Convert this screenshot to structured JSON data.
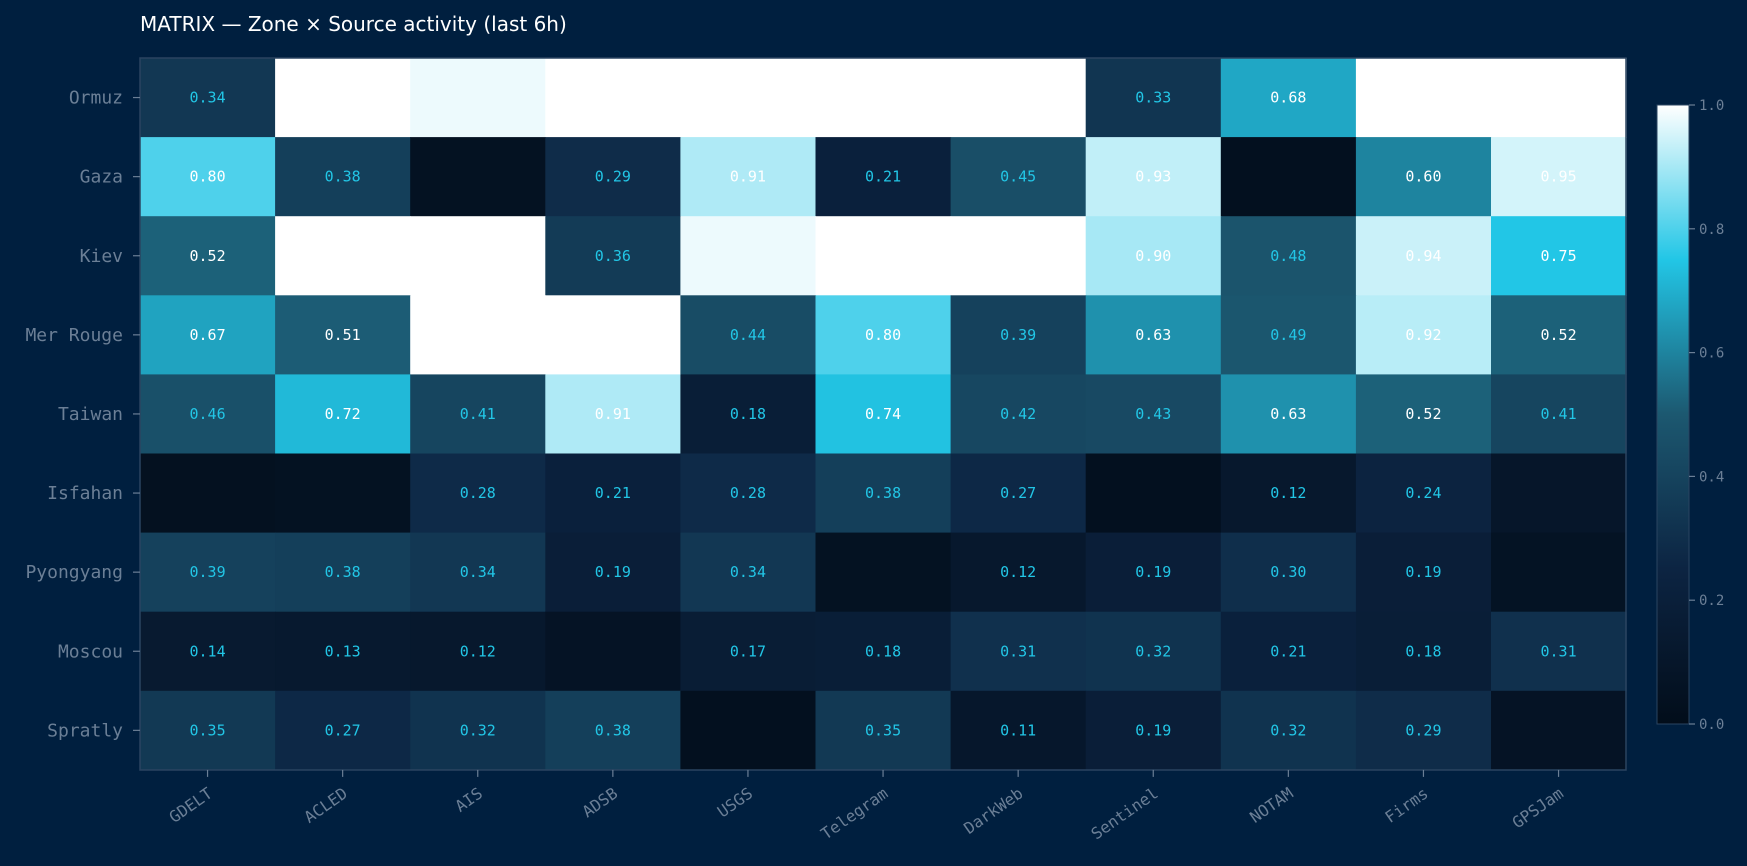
{
  "chart_data": {
    "type": "heatmap",
    "title": "MATRIX — Zone × Source activity  (last 6h)",
    "rows": [
      "Ormuz",
      "Gaza",
      "Kiev",
      "Mer Rouge",
      "Taiwan",
      "Isfahan",
      "Pyongyang",
      "Moscou",
      "Spratly"
    ],
    "columns": [
      "GDELT",
      "ACLED",
      "AIS",
      "ADSB",
      "USGS",
      "Telegram",
      "DarkWeb",
      "Sentinel",
      "NOTAM",
      "Firms",
      "GPSJam"
    ],
    "values": [
      [
        0.34,
        1.0,
        0.98,
        1.0,
        1.0,
        1.0,
        1.0,
        0.33,
        0.68,
        1.0,
        1.0
      ],
      [
        0.8,
        0.38,
        0.05,
        0.29,
        0.91,
        0.21,
        0.45,
        0.93,
        0.03,
        0.6,
        0.95
      ],
      [
        0.52,
        1.0,
        1.0,
        0.36,
        0.98,
        1.0,
        1.0,
        0.9,
        0.48,
        0.94,
        0.75
      ],
      [
        0.67,
        0.51,
        1.0,
        1.0,
        0.44,
        0.8,
        0.39,
        0.63,
        0.49,
        0.92,
        0.52
      ],
      [
        0.46,
        0.72,
        0.41,
        0.91,
        0.18,
        0.74,
        0.42,
        0.43,
        0.63,
        0.52,
        0.41
      ],
      [
        0.04,
        0.05,
        0.28,
        0.21,
        0.28,
        0.38,
        0.27,
        0.03,
        0.12,
        0.24,
        0.1
      ],
      [
        0.39,
        0.38,
        0.34,
        0.19,
        0.34,
        0.05,
        0.12,
        0.19,
        0.3,
        0.19,
        0.06
      ],
      [
        0.14,
        0.13,
        0.12,
        0.07,
        0.17,
        0.18,
        0.31,
        0.32,
        0.21,
        0.18,
        0.31
      ],
      [
        0.35,
        0.27,
        0.32,
        0.38,
        0.03,
        0.35,
        0.11,
        0.19,
        0.32,
        0.29,
        0.07
      ]
    ],
    "labels": [
      [
        "0.34",
        "",
        "",
        "",
        "",
        "",
        "",
        "0.33",
        "0.68",
        "",
        ""
      ],
      [
        "0.80",
        "0.38",
        "",
        "0.29",
        "0.91",
        "0.21",
        "0.45",
        "0.93",
        "",
        "0.60",
        "0.95"
      ],
      [
        "0.52",
        "",
        "",
        "0.36",
        "",
        "",
        "",
        "0.90",
        "0.48",
        "0.94",
        "0.75"
      ],
      [
        "0.67",
        "0.51",
        "",
        "",
        "0.44",
        "0.80",
        "0.39",
        "0.63",
        "0.49",
        "0.92",
        "0.52"
      ],
      [
        "0.46",
        "0.72",
        "0.41",
        "0.91",
        "0.18",
        "0.74",
        "0.42",
        "0.43",
        "0.63",
        "0.52",
        "0.41"
      ],
      [
        "",
        "",
        "0.28",
        "0.21",
        "0.28",
        "0.38",
        "0.27",
        "",
        "0.12",
        "0.24",
        ""
      ],
      [
        "0.39",
        "0.38",
        "0.34",
        "0.19",
        "0.34",
        "",
        "0.12",
        "0.19",
        "0.30",
        "0.19",
        ""
      ],
      [
        "0.14",
        "0.13",
        "0.12",
        "",
        "0.17",
        "0.18",
        "0.31",
        "0.32",
        "0.21",
        "0.18",
        "0.31"
      ],
      [
        "0.35",
        "0.27",
        "0.32",
        "0.38",
        "",
        "0.35",
        "0.11",
        "0.19",
        "0.32",
        "0.29",
        ""
      ]
    ],
    "vmin": 0.0,
    "vmax": 1.0,
    "colorbar": {
      "ticks": [
        "0.0",
        "0.2",
        "0.4",
        "0.6",
        "0.8",
        "1.0"
      ],
      "tick_values": [
        0.0,
        0.2,
        0.4,
        0.6,
        0.8,
        1.0
      ],
      "placement": "right"
    },
    "colors": {
      "background": "#001f3f",
      "stops": [
        "#020d1a",
        "#0c2442",
        "#1c5870",
        "#22c6e6",
        "#ffffff"
      ],
      "label_bright": "#ffffff",
      "label_dim": "#22c6e6",
      "tick_text": "#6b7f96",
      "frame": "#2a4461"
    }
  }
}
